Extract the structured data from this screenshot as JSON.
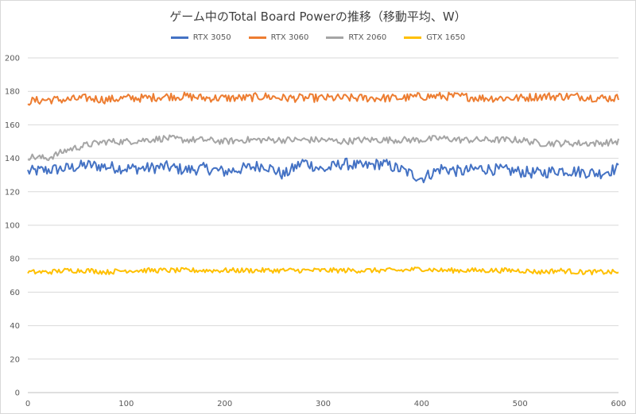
{
  "chart_data": {
    "type": "line",
    "title": "ゲーム中のTotal Board Powerの推移（移動平均、W）",
    "xlabel": "",
    "ylabel": "",
    "xlim": [
      0,
      600
    ],
    "ylim": [
      0,
      200
    ],
    "x_ticks": [
      0,
      100,
      200,
      300,
      400,
      500,
      600
    ],
    "y_ticks": [
      0,
      20,
      40,
      60,
      80,
      100,
      120,
      140,
      160,
      180,
      200
    ],
    "x_tick_labels": [
      "0",
      "100",
      "200",
      "300",
      "400",
      "500",
      "600"
    ],
    "y_tick_labels": [
      "0",
      "20",
      "40",
      "60",
      "80",
      "100",
      "120",
      "140",
      "160",
      "180",
      "200"
    ],
    "grid": true,
    "legend_position": "top",
    "x": [
      0,
      20,
      40,
      60,
      80,
      100,
      120,
      140,
      160,
      180,
      200,
      220,
      240,
      260,
      280,
      300,
      320,
      340,
      360,
      380,
      400,
      420,
      440,
      460,
      480,
      500,
      520,
      540,
      560,
      580,
      600
    ],
    "series": [
      {
        "name": "RTX 3050",
        "color": "#4472c4",
        "values": [
          132,
          133,
          134,
          136,
          135,
          134,
          134,
          135,
          133,
          134,
          132,
          134,
          136,
          130,
          138,
          133,
          137,
          135,
          137,
          133,
          128,
          134,
          132,
          134,
          133,
          132,
          131,
          133,
          132,
          131,
          134
        ]
      },
      {
        "name": "RTX 3060",
        "color": "#ed7d31",
        "values": [
          174,
          175,
          175,
          176,
          175,
          176,
          176,
          177,
          177,
          176,
          176,
          176,
          177,
          176,
          176,
          176,
          176,
          176,
          176,
          176,
          177,
          177,
          177,
          176,
          176,
          176,
          177,
          177,
          177,
          176,
          176
        ]
      },
      {
        "name": "RTX 2060",
        "color": "#a5a5a5",
        "values": [
          141,
          140,
          145,
          148,
          150,
          150,
          151,
          152,
          151,
          151,
          150,
          151,
          151,
          151,
          151,
          151,
          150,
          151,
          151,
          151,
          151,
          152,
          151,
          151,
          151,
          151,
          149,
          149,
          149,
          149,
          150
        ]
      },
      {
        "name": "GTX 1650",
        "color": "#ffc000",
        "values": [
          72,
          72,
          73,
          73,
          72,
          73,
          73,
          73,
          73,
          73,
          73,
          73,
          73,
          73,
          73,
          73,
          73,
          73,
          73,
          73,
          74,
          73,
          73,
          73,
          73,
          73,
          72,
          73,
          72,
          72,
          72
        ]
      }
    ]
  }
}
